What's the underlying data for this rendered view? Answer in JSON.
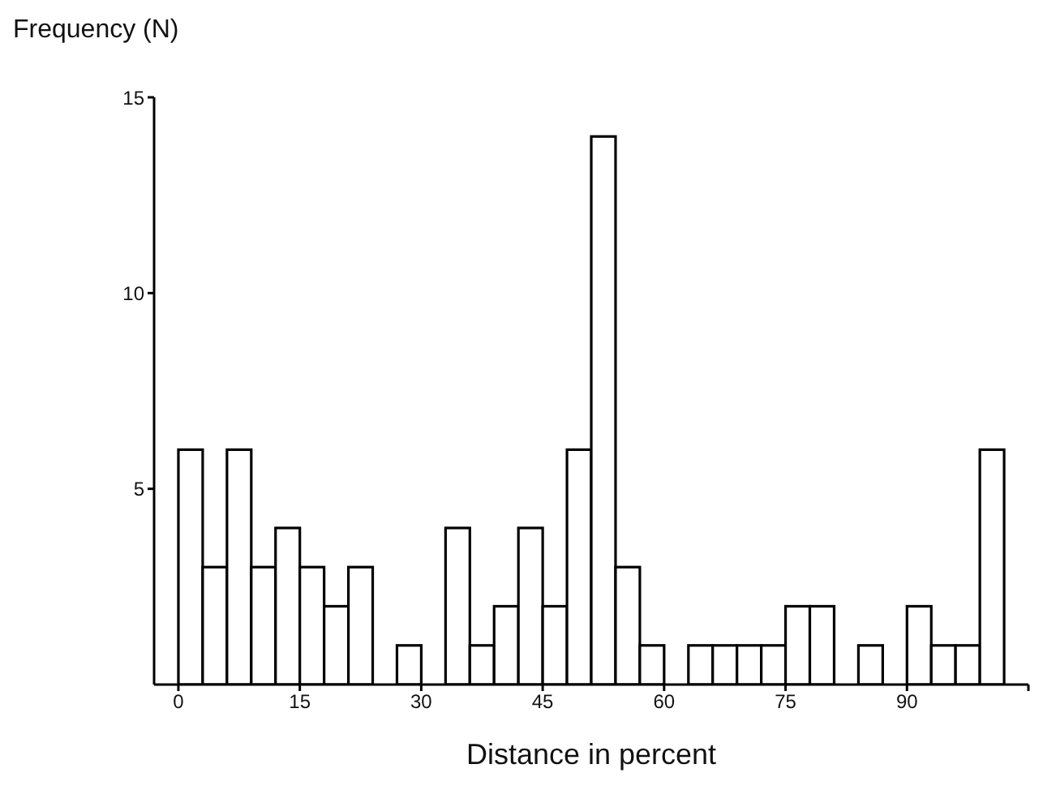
{
  "chart_data": {
    "type": "histogram",
    "ylabel": "Frequency (N)",
    "xlabel": "Distance in percent",
    "bins": [
      0,
      3,
      6,
      9,
      12,
      15,
      18,
      21,
      24,
      27,
      30,
      33,
      36,
      39,
      42,
      45,
      48,
      51,
      54,
      57,
      60,
      63,
      66,
      69,
      72,
      75,
      78,
      81,
      84,
      87,
      90,
      93,
      96,
      99,
      102
    ],
    "values": [
      6,
      3,
      6,
      3,
      4,
      3,
      2,
      3,
      0,
      1,
      0,
      4,
      1,
      2,
      4,
      2,
      6,
      14,
      3,
      1,
      0,
      1,
      1,
      1,
      1,
      2,
      2,
      0,
      1,
      0,
      2,
      1,
      1,
      6
    ],
    "color": "#ffffff",
    "xlim": [
      -3,
      105
    ],
    "xticks": [
      0,
      15,
      30,
      45,
      60,
      75,
      90,
      {
        "value": 105,
        "label": null
      }
    ],
    "ylim": [
      0,
      15
    ],
    "yticks": [
      5,
      10,
      15
    ],
    "grid": false
  }
}
